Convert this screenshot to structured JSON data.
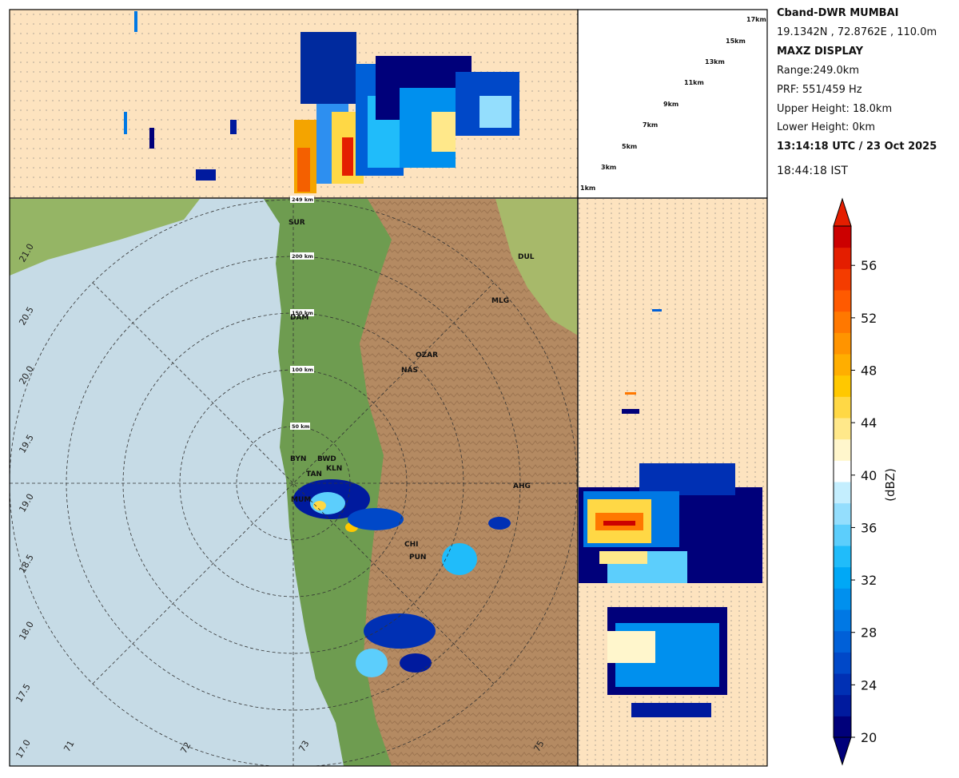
{
  "header": {
    "station": "Cband-DWR MUMBAI",
    "coords": "19.1342N , 72.8762E , 110.0m",
    "display": "MAXZ DISPLAY",
    "range": "Range:249.0km",
    "prf": "PRF: 551/459 Hz",
    "upper_height": "Upper Height: 18.0km",
    "lower_height": "Lower Height: 0km",
    "utc_time": "13:14:18 UTC / 23 Oct 2025",
    "ist_time": "18:44:18  IST"
  },
  "height_labels": [
    "1km",
    "3km",
    "5km",
    "7km",
    "9km",
    "11km",
    "13km",
    "15km",
    "17km"
  ],
  "range_labels": [
    "50 km",
    "100 km",
    "150 km",
    "200 km",
    "249 km"
  ],
  "lat_labels": [
    "17.0",
    "17.5",
    "18.0",
    "18.5",
    "19.0",
    "19.5",
    "20.0",
    "20.5",
    "21.0"
  ],
  "lon_labels": [
    "71",
    "72",
    "73",
    "75"
  ],
  "cities": [
    "SUR",
    "DUL",
    "MLG",
    "DAM",
    "OZAR",
    "NAS",
    "BYN",
    "BWD",
    "KLN",
    "TAN",
    "MUM",
    "CHI",
    "PUN",
    "AHG"
  ],
  "colorbar": {
    "title": "(dBZ)",
    "ticks": [
      "20",
      "24",
      "28",
      "32",
      "36",
      "40",
      "44",
      "48",
      "52",
      "56"
    ],
    "min": 20,
    "max": 59,
    "colors": [
      "#00007a",
      "#001a9e",
      "#0030b4",
      "#0048c8",
      "#0060d8",
      "#0078e4",
      "#0090ee",
      "#00a8f6",
      "#20bcfa",
      "#5ccefc",
      "#94defd",
      "#c4eefe",
      "#ffffff",
      "#fff6cc",
      "#ffe88a",
      "#ffd845",
      "#ffc800",
      "#ffae00",
      "#ff9400",
      "#ff7800",
      "#ff5a00",
      "#f43c00",
      "#e41e00",
      "#cc0000"
    ]
  }
}
